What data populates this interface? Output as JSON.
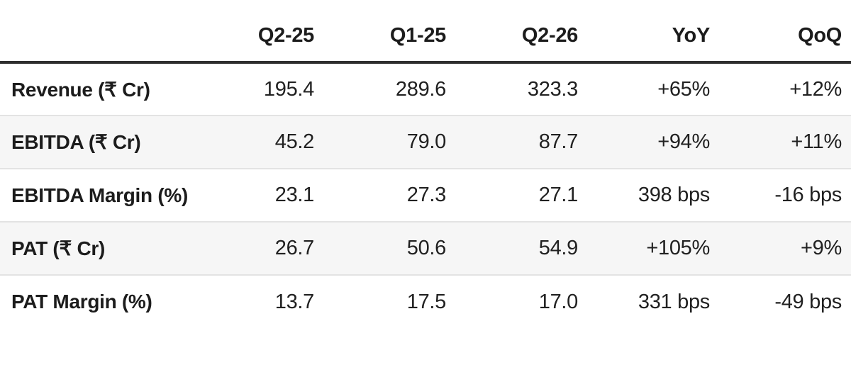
{
  "chart_data": {
    "type": "table",
    "columns": [
      "",
      "Q2-25",
      "Q1-25",
      "Q2-26",
      "YoY",
      "QoQ"
    ],
    "rows": [
      {
        "label": "Revenue (₹ Cr)",
        "values": [
          "195.4",
          "289.6",
          "323.3",
          "+65%",
          "+12%"
        ]
      },
      {
        "label": "EBITDA (₹ Cr)",
        "values": [
          "45.2",
          "79.0",
          "87.7",
          "+94%",
          "+11%"
        ]
      },
      {
        "label": "EBITDA Margin (%)",
        "values": [
          "23.1",
          "27.3",
          "27.1",
          "398 bps",
          "-16 bps"
        ]
      },
      {
        "label": "PAT (₹ Cr)",
        "values": [
          "26.7",
          "50.6",
          "54.9",
          "+105%",
          "+9%"
        ]
      },
      {
        "label": "PAT Margin (%)",
        "values": [
          "13.7",
          "17.5",
          "17.0",
          "331 bps",
          "-49 bps"
        ]
      }
    ],
    "layout": {
      "alternating_rows": true,
      "header_rule": "thick-bottom-border",
      "value_alignment": "right"
    }
  },
  "colors": {
    "background": "#ffffff",
    "text": "#1e1e1e",
    "header_rule": "#2e2e2e",
    "row_separator": "#e3e3e3",
    "alt_row_bg": "#f6f6f6"
  }
}
